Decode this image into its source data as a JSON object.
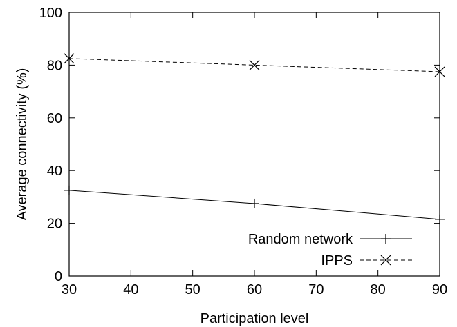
{
  "chart_data": {
    "type": "line",
    "title": "",
    "xlabel": "Participation level",
    "ylabel": "Average connectivity (%)",
    "xlim": [
      30,
      90
    ],
    "ylim": [
      0,
      100
    ],
    "x_ticks": [
      30,
      40,
      50,
      60,
      70,
      80,
      90
    ],
    "y_ticks": [
      0,
      20,
      40,
      60,
      80,
      100
    ],
    "grid": false,
    "legend_position": "bottom-right",
    "series": [
      {
        "name": "Random network",
        "marker": "plus",
        "line_style": "solid",
        "color": "#000000",
        "x": [
          30,
          60,
          90
        ],
        "y": [
          32.5,
          27.5,
          21.5
        ]
      },
      {
        "name": "IPPS",
        "marker": "cross",
        "line_style": "dashed",
        "color": "#000000",
        "x": [
          30,
          60,
          90
        ],
        "y": [
          82.5,
          80,
          77.5
        ]
      }
    ]
  }
}
